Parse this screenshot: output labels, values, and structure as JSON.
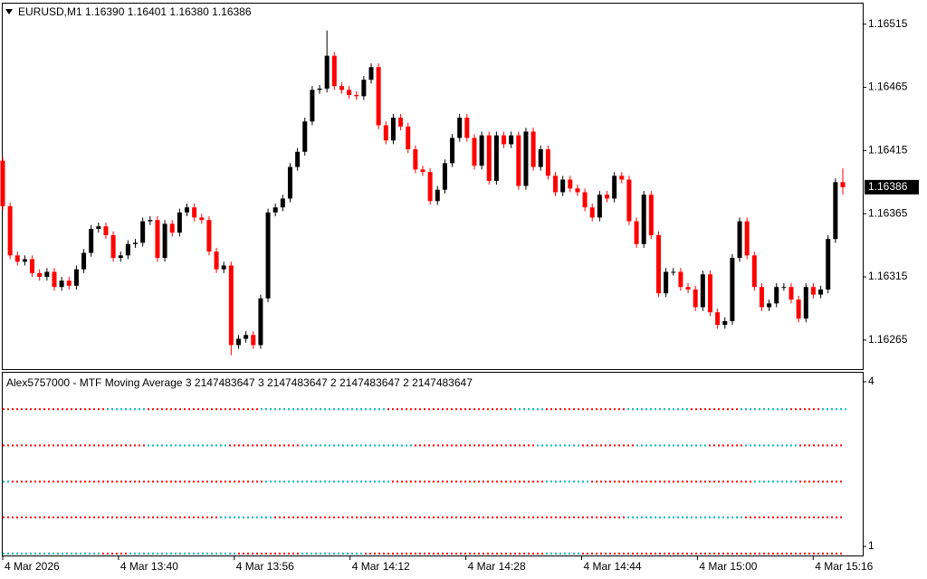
{
  "chart_data": [
    {
      "type": "candlestick",
      "title": "EURUSD,M1  1.16390 1.16401 1.16380 1.16386",
      "ylim": [
        1.16242,
        1.16532
      ],
      "yticks": [
        1.16515,
        1.16465,
        1.16415,
        1.16365,
        1.16315,
        1.16265
      ],
      "xticks": [
        "4 Mar 2026",
        "4 Mar 13:40",
        "4 Mar 13:56",
        "4 Mar 14:12",
        "4 Mar 14:28",
        "4 Mar 14:44",
        "4 Mar 15:00",
        "4 Mar 15:16"
      ],
      "up_color": "#000000",
      "down_color": "#ff0000",
      "series": [
        {
          "open": [
            1.16407,
            1.16371,
            1.16332,
            1.16327,
            1.16329,
            1.16318,
            1.16315,
            1.16319,
            1.16307,
            1.16312,
            1.16308,
            1.16321,
            1.16334,
            1.16353,
            1.16355,
            1.16348,
            1.1633,
            1.16332,
            1.16341,
            1.16342,
            1.16359,
            1.1636,
            1.1633,
            1.16357,
            1.1635,
            1.16366,
            1.1637,
            1.16362,
            1.1636,
            1.16335,
            1.16321,
            1.16324,
            1.16261,
            1.16266,
            1.16269,
            1.16261,
            1.16298,
            1.16366,
            1.1637,
            1.16377,
            1.16402,
            1.16414,
            1.16438,
            1.16463,
            1.16464,
            1.1649,
            1.16466,
            1.16463,
            1.16459,
            1.16458,
            1.16471,
            1.16481,
            1.16435,
            1.16423,
            1.16441,
            1.16434,
            1.16416,
            1.164,
            1.16398,
            1.16375,
            1.16384,
            1.16405,
            1.16425,
            1.16441,
            1.16425,
            1.16403,
            1.16427,
            1.16391,
            1.16427,
            1.1642,
            1.16427,
            1.16387,
            1.1643,
            1.16402,
            1.16416,
            1.16395,
            1.16382,
            1.16392,
            1.16385,
            1.16382,
            1.1637,
            1.16362,
            1.1638,
            1.16377,
            1.16395,
            1.16392,
            1.16359,
            1.16341,
            1.1638,
            1.16348,
            1.16302,
            1.16319,
            1.16319,
            1.16307,
            1.16305,
            1.16291,
            1.16317,
            1.16287,
            1.16277,
            1.1628,
            1.1633,
            1.16359,
            1.16332,
            1.16307,
            1.16291,
            1.16294,
            1.16307,
            1.16307,
            1.16297,
            1.16282,
            1.16307,
            1.16301,
            1.16305,
            1.16345,
            1.1639
          ],
          "high": [
            1.1641,
            1.16374,
            1.16335,
            1.16332,
            1.16332,
            1.16321,
            1.16322,
            1.16322,
            1.16315,
            1.16315,
            1.16324,
            1.16337,
            1.16356,
            1.16358,
            1.16358,
            1.16351,
            1.16335,
            1.16344,
            1.16345,
            1.16362,
            1.16363,
            1.16363,
            1.1636,
            1.1636,
            1.16369,
            1.16373,
            1.16373,
            1.16365,
            1.16363,
            1.16338,
            1.16327,
            1.16327,
            1.16269,
            1.16272,
            1.16272,
            1.16301,
            1.16369,
            1.16373,
            1.1638,
            1.16405,
            1.16417,
            1.16441,
            1.16466,
            1.16467,
            1.1651,
            1.16493,
            1.16469,
            1.16466,
            1.16462,
            1.16474,
            1.16484,
            1.16484,
            1.16438,
            1.16444,
            1.16444,
            1.16437,
            1.16419,
            1.16403,
            1.16401,
            1.16387,
            1.16408,
            1.16428,
            1.16444,
            1.16444,
            1.16428,
            1.1643,
            1.1643,
            1.1643,
            1.1643,
            1.1643,
            1.1643,
            1.16433,
            1.16433,
            1.16419,
            1.16419,
            1.16398,
            1.16395,
            1.16395,
            1.16388,
            1.16385,
            1.16373,
            1.16383,
            1.16383,
            1.16398,
            1.16398,
            1.16395,
            1.16362,
            1.16383,
            1.16383,
            1.16351,
            1.16322,
            1.16322,
            1.16322,
            1.1631,
            1.16308,
            1.1632,
            1.1632,
            1.1629,
            1.16283,
            1.16333,
            1.16362,
            1.16362,
            1.16335,
            1.1631,
            1.16297,
            1.1631,
            1.1631,
            1.1631,
            1.163,
            1.1631,
            1.1631,
            1.16308,
            1.16348,
            1.16393,
            1.16401
          ],
          "low": [
            1.16368,
            1.16329,
            1.16324,
            1.16324,
            1.16315,
            1.16312,
            1.16312,
            1.16304,
            1.16304,
            1.16305,
            1.16305,
            1.16318,
            1.16331,
            1.1635,
            1.16345,
            1.16327,
            1.16327,
            1.16329,
            1.16338,
            1.16339,
            1.16356,
            1.16327,
            1.16327,
            1.16347,
            1.16347,
            1.16363,
            1.16359,
            1.16357,
            1.16332,
            1.16318,
            1.16318,
            1.16253,
            1.16258,
            1.16263,
            1.16258,
            1.16258,
            1.16295,
            1.16363,
            1.16367,
            1.16374,
            1.16399,
            1.16411,
            1.16435,
            1.1646,
            1.16461,
            1.16463,
            1.1646,
            1.16456,
            1.16455,
            1.16455,
            1.16468,
            1.16432,
            1.1642,
            1.1642,
            1.16431,
            1.16413,
            1.16397,
            1.16395,
            1.16372,
            1.16372,
            1.16381,
            1.16402,
            1.16422,
            1.16422,
            1.164,
            1.164,
            1.16388,
            1.16388,
            1.16417,
            1.16417,
            1.16384,
            1.16384,
            1.16399,
            1.16399,
            1.16392,
            1.16379,
            1.16379,
            1.16382,
            1.16379,
            1.16367,
            1.16359,
            1.16359,
            1.16374,
            1.16374,
            1.16389,
            1.16356,
            1.16338,
            1.16338,
            1.16345,
            1.16299,
            1.16299,
            1.16316,
            1.16304,
            1.16302,
            1.16288,
            1.16288,
            1.16284,
            1.16274,
            1.16274,
            1.16277,
            1.16327,
            1.16329,
            1.16304,
            1.16288,
            1.16288,
            1.16291,
            1.16304,
            1.16294,
            1.16279,
            1.16279,
            1.16298,
            1.16298,
            1.16302,
            1.16342,
            1.1638
          ],
          "close": [
            1.16371,
            1.16332,
            1.16327,
            1.16329,
            1.16318,
            1.16315,
            1.16319,
            1.16307,
            1.16312,
            1.16308,
            1.16321,
            1.16334,
            1.16353,
            1.16355,
            1.16348,
            1.1633,
            1.16332,
            1.16341,
            1.16342,
            1.16359,
            1.1636,
            1.1633,
            1.16357,
            1.1635,
            1.16366,
            1.1637,
            1.16362,
            1.1636,
            1.16335,
            1.16321,
            1.16324,
            1.16261,
            1.16266,
            1.16269,
            1.16261,
            1.16298,
            1.16366,
            1.1637,
            1.16377,
            1.16402,
            1.16414,
            1.16438,
            1.16463,
            1.16464,
            1.1649,
            1.16466,
            1.16463,
            1.16459,
            1.16458,
            1.16471,
            1.16481,
            1.16435,
            1.16423,
            1.16441,
            1.16434,
            1.16416,
            1.164,
            1.16398,
            1.16375,
            1.16384,
            1.16405,
            1.16425,
            1.16441,
            1.16425,
            1.16403,
            1.16427,
            1.16391,
            1.16427,
            1.1642,
            1.16427,
            1.16387,
            1.1643,
            1.16402,
            1.16416,
            1.16395,
            1.16382,
            1.16392,
            1.16385,
            1.16382,
            1.1637,
            1.16362,
            1.1638,
            1.16377,
            1.16395,
            1.16392,
            1.16359,
            1.16341,
            1.1638,
            1.16348,
            1.16302,
            1.16319,
            1.16319,
            1.16307,
            1.16305,
            1.16291,
            1.16317,
            1.16287,
            1.16277,
            1.1628,
            1.1633,
            1.16359,
            1.16332,
            1.16307,
            1.16291,
            1.16294,
            1.16307,
            1.16307,
            1.16297,
            1.16282,
            1.16307,
            1.16301,
            1.16305,
            1.16345,
            1.1639,
            1.16386
          ]
        }
      ]
    },
    {
      "type": "level-lines",
      "title": "Alex5757000 - MTF Moving Average 3 2147483647 3 2147483647 2 2147483647 2 2147483647",
      "ylim": [
        0.835,
        4.18
      ],
      "yticks": [
        4,
        1
      ],
      "values": [
        3.5,
        2.84,
        2.18,
        1.53,
        0.87
      ],
      "colors": [
        "#ff0000",
        "#00cccc"
      ]
    }
  ]
}
